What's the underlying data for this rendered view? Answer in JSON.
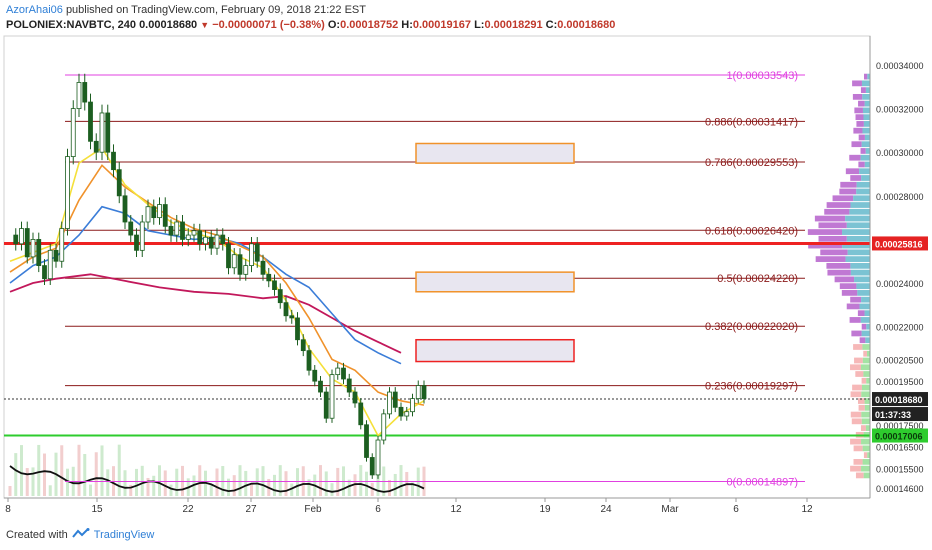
{
  "header": {
    "author": "AzorAhai06",
    "published": "published on TradingView.com, February 09, 2018 21:22 EST"
  },
  "ohlc": {
    "symbol": "POLONIEX:NAVBTC, 240",
    "last": "0.00018680",
    "change": "−0.00000071 (−0.38%)",
    "o_label": "O:",
    "open": "0.00018752",
    "h_label": "H:",
    "high": "0.00019167",
    "l_label": "L:",
    "low": "0.00018291",
    "c_label": "C:",
    "close": "0.00018680"
  },
  "footer": {
    "created": "Created with",
    "brand": "TradingView"
  },
  "colors": {
    "fib": "#8b1a1a",
    "fib_extreme": "#e040e0",
    "support": "#2ecc2e",
    "resistance": "#ee2222",
    "ema_fast": "#f5e03a",
    "ema_mid": "#f0922b",
    "ma_slow": "#3b7dd8",
    "ma_long": "#c2185b",
    "price": "#1c5e20"
  },
  "chart_data": {
    "type": "candlestick",
    "x_tick_labels": [
      "8",
      "15",
      "22",
      "27",
      "Feb",
      "6",
      "12",
      "19",
      "24",
      "Mar",
      "6",
      "12"
    ],
    "y_tick_labels": [
      "0.00034000",
      "0.00032000",
      "0.00030000",
      "0.00028000",
      "0.00024000",
      "0.00022000",
      "0.00020500",
      "0.00019500",
      "0.00017500",
      "0.00016500",
      "0.00015500",
      "0.00014600"
    ],
    "y_ticks": [
      0.00034,
      0.00032,
      0.0003,
      0.00028,
      0.00024,
      0.00022,
      0.000205,
      0.000195,
      0.000175,
      0.000165,
      0.000155,
      0.000146
    ],
    "fib_levels": [
      {
        "label": "1(0.00033543)",
        "value": 0.00033543
      },
      {
        "label": "0.886(0.00031417)",
        "value": 0.00031417
      },
      {
        "label": "0.786(0.00029553)",
        "value": 0.00029553
      },
      {
        "label": "0.618(0.00026420)",
        "value": 0.0002642
      },
      {
        "label": "0.5(0.00024220)",
        "value": 0.0002422
      },
      {
        "label": "0.382(0.00022020)",
        "value": 0.0002202
      },
      {
        "label": "0.236(0.00019297)",
        "value": 0.00019297
      },
      {
        "label": "0(0.00014897)",
        "value": 0.00014897
      }
    ],
    "resistance": {
      "label": "0.00025816",
      "value": 0.00025816
    },
    "support": {
      "label": "0.00017006",
      "value": 0.00017006
    },
    "current_price": {
      "label": "0.00018680",
      "value": 0.0001868,
      "countdown": "01:37:33"
    },
    "target_boxes": [
      {
        "from": 0.000295,
        "to": 0.000304,
        "color": "#f0922b"
      },
      {
        "from": 0.000236,
        "to": 0.000245,
        "color": "#f0922b"
      },
      {
        "from": 0.000204,
        "to": 0.000214,
        "color": "#ee2222"
      }
    ],
    "price": [
      [
        0,
        0.000262
      ],
      [
        1,
        0.000258
      ],
      [
        2,
        0.000265
      ],
      [
        3,
        0.000252
      ],
      [
        4,
        0.00026
      ],
      [
        5,
        0.000248
      ],
      [
        6,
        0.000242
      ],
      [
        7,
        0.000255
      ],
      [
        8,
        0.00025
      ],
      [
        9,
        0.000265
      ],
      [
        10,
        0.000298
      ],
      [
        11,
        0.00032
      ],
      [
        12,
        0.000332
      ],
      [
        13,
        0.000323
      ],
      [
        14,
        0.000305
      ],
      [
        15,
        0.0003
      ],
      [
        16,
        0.000318
      ],
      [
        17,
        0.0003
      ],
      [
        18,
        0.000292
      ],
      [
        19,
        0.00028
      ],
      [
        20,
        0.000268
      ],
      [
        21,
        0.000262
      ],
      [
        22,
        0.000255
      ],
      [
        23,
        0.000268
      ],
      [
        24,
        0.000275
      ],
      [
        25,
        0.00027
      ],
      [
        26,
        0.000276
      ],
      [
        27,
        0.000266
      ],
      [
        28,
        0.000262
      ],
      [
        29,
        0.000268
      ],
      [
        30,
        0.00026
      ],
      [
        31,
        0.000262
      ],
      [
        32,
        0.000264
      ],
      [
        33,
        0.000258
      ],
      [
        34,
        0.000261
      ],
      [
        35,
        0.000256
      ],
      [
        36,
        0.000262
      ],
      [
        37,
        0.000258
      ],
      [
        38,
        0.000247
      ],
      [
        39,
        0.000253
      ],
      [
        40,
        0.000244
      ],
      [
        41,
        0.000248
      ],
      [
        42,
        0.000258
      ],
      [
        43,
        0.00025
      ],
      [
        44,
        0.000244
      ],
      [
        45,
        0.000241
      ],
      [
        46,
        0.000237
      ],
      [
        47,
        0.000231
      ],
      [
        48,
        0.000225
      ],
      [
        49,
        0.000224
      ],
      [
        50,
        0.000214
      ],
      [
        51,
        0.000209
      ],
      [
        52,
        0.0002
      ],
      [
        53,
        0.000195
      ],
      [
        54,
        0.00019
      ],
      [
        55,
        0.000178
      ],
      [
        56,
        0.000198
      ],
      [
        57,
        0.000201
      ],
      [
        58,
        0.000196
      ],
      [
        59,
        0.00019
      ],
      [
        60,
        0.000185
      ],
      [
        61,
        0.000175
      ],
      [
        62,
        0.00016
      ],
      [
        63,
        0.000152
      ],
      [
        64,
        0.000168
      ],
      [
        65,
        0.00018
      ],
      [
        66,
        0.00019
      ],
      [
        67,
        0.000183
      ],
      [
        68,
        0.000179
      ],
      [
        69,
        0.000181
      ],
      [
        70,
        0.000187
      ],
      [
        71,
        0.000193
      ],
      [
        72,
        0.000187
      ]
    ],
    "ema_fast": [
      [
        0,
        0.00025
      ],
      [
        4,
        0.000254
      ],
      [
        8,
        0.000258
      ],
      [
        12,
        0.000295
      ],
      [
        16,
        0.000302
      ],
      [
        20,
        0.000285
      ],
      [
        24,
        0.000276
      ],
      [
        28,
        0.000268
      ],
      [
        32,
        0.000263
      ],
      [
        36,
        0.00026
      ],
      [
        40,
        0.000252
      ],
      [
        44,
        0.000247
      ],
      [
        48,
        0.000232
      ],
      [
        52,
        0.00021
      ],
      [
        56,
        0.000196
      ],
      [
        60,
        0.00019
      ],
      [
        64,
        0.00017
      ],
      [
        68,
        0.00018
      ],
      [
        72,
        0.000186
      ]
    ],
    "ema_mid": [
      [
        0,
        0.000245
      ],
      [
        4,
        0.000252
      ],
      [
        8,
        0.000256
      ],
      [
        12,
        0.000278
      ],
      [
        16,
        0.000294
      ],
      [
        20,
        0.000284
      ],
      [
        24,
        0.000277
      ],
      [
        28,
        0.00027
      ],
      [
        32,
        0.000265
      ],
      [
        36,
        0.000262
      ],
      [
        40,
        0.000257
      ],
      [
        44,
        0.000252
      ],
      [
        48,
        0.00024
      ],
      [
        52,
        0.000224
      ],
      [
        56,
        0.000205
      ],
      [
        60,
        0.0002
      ],
      [
        64,
        0.00019
      ],
      [
        68,
        0.000186
      ],
      [
        72,
        0.000184
      ]
    ],
    "ma_slow": [
      [
        0,
        0.00024
      ],
      [
        4,
        0.000248
      ],
      [
        8,
        0.000252
      ],
      [
        12,
        0.000262
      ],
      [
        16,
        0.000275
      ],
      [
        20,
        0.000272
      ],
      [
        24,
        0.000264
      ],
      [
        28,
        0.000262
      ],
      [
        32,
        0.00026
      ],
      [
        36,
        0.000261
      ],
      [
        40,
        0.000258
      ],
      [
        44,
        0.000252
      ],
      [
        48,
        0.000244
      ],
      [
        52,
        0.000238
      ],
      [
        56,
        0.000226
      ],
      [
        60,
        0.000214
      ],
      [
        64,
        0.000208
      ],
      [
        68,
        0.000203
      ]
    ],
    "ma_long": [
      [
        0,
        0.000236
      ],
      [
        4,
        0.00024
      ],
      [
        8,
        0.000242
      ],
      [
        14,
        0.000244
      ],
      [
        20,
        0.000241
      ],
      [
        26,
        0.000238
      ],
      [
        32,
        0.000236
      ],
      [
        38,
        0.000235
      ],
      [
        44,
        0.000233
      ],
      [
        48,
        0.000234
      ],
      [
        52,
        0.00023
      ],
      [
        56,
        0.000224
      ],
      [
        60,
        0.000218
      ],
      [
        64,
        0.000213
      ],
      [
        68,
        0.000208
      ]
    ],
    "volume_profile_rows": 60
  }
}
